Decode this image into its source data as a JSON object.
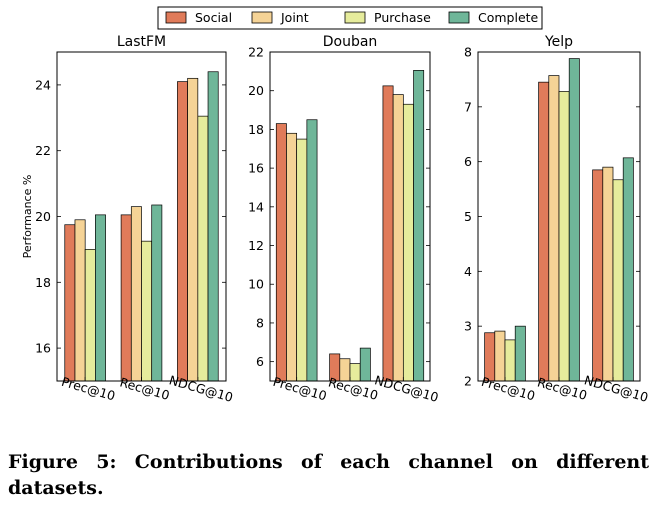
{
  "caption": "Figure 5: Contributions of each channel on different datasets.",
  "colors": {
    "Social": "#e07b5a",
    "Joint": "#f5d396",
    "Purchase": "#e6ec9c",
    "Complete": "#6fb699"
  },
  "chart_data": [
    {
      "type": "bar",
      "title": "LastFM",
      "ylabel": "Performance %",
      "categories": [
        "Prec@10",
        "Rec@10",
        "NDCG@10"
      ],
      "ylim": [
        15,
        25
      ],
      "yticks": [
        16,
        18,
        20,
        22,
        24
      ],
      "series": [
        {
          "name": "Social",
          "values": [
            19.75,
            20.05,
            24.1
          ]
        },
        {
          "name": "Joint",
          "values": [
            19.9,
            20.3,
            24.2
          ]
        },
        {
          "name": "Purchase",
          "values": [
            19.0,
            19.25,
            23.05
          ]
        },
        {
          "name": "Complete",
          "values": [
            20.05,
            20.35,
            24.4
          ]
        }
      ]
    },
    {
      "type": "bar",
      "title": "Douban",
      "categories": [
        "Prec@10",
        "Rec@10",
        "NDCG@10"
      ],
      "ylim": [
        5,
        22
      ],
      "yticks": [
        6,
        8,
        10,
        12,
        14,
        16,
        18,
        20,
        22
      ],
      "series": [
        {
          "name": "Social",
          "values": [
            18.3,
            6.4,
            20.25
          ]
        },
        {
          "name": "Joint",
          "values": [
            17.8,
            6.15,
            19.8
          ]
        },
        {
          "name": "Purchase",
          "values": [
            17.5,
            5.9,
            19.3
          ]
        },
        {
          "name": "Complete",
          "values": [
            18.5,
            6.7,
            21.05
          ]
        }
      ]
    },
    {
      "type": "bar",
      "title": "Yelp",
      "categories": [
        "Prec@10",
        "Rec@10",
        "NDCG@10"
      ],
      "ylim": [
        2,
        8
      ],
      "yticks": [
        2,
        3,
        4,
        5,
        6,
        7,
        8
      ],
      "series": [
        {
          "name": "Social",
          "values": [
            2.88,
            7.45,
            5.85
          ]
        },
        {
          "name": "Joint",
          "values": [
            2.91,
            7.57,
            5.9
          ]
        },
        {
          "name": "Purchase",
          "values": [
            2.75,
            7.28,
            5.67
          ]
        },
        {
          "name": "Complete",
          "values": [
            3.0,
            7.88,
            6.07
          ]
        }
      ]
    }
  ]
}
